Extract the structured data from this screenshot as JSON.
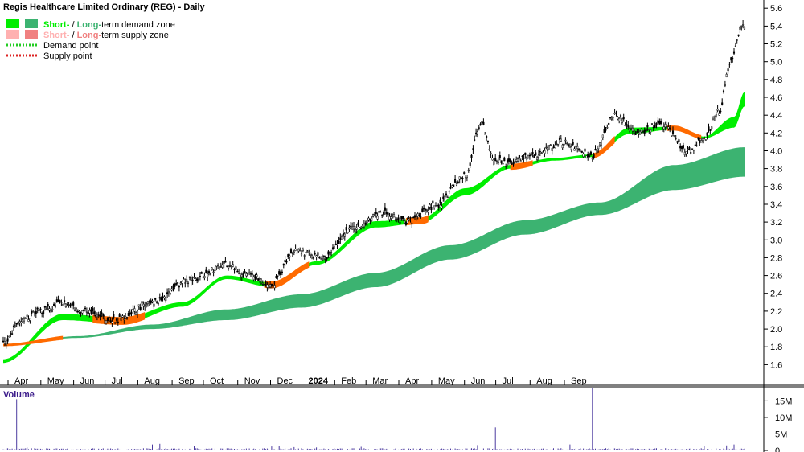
{
  "chart_data": {
    "type": "candlestick",
    "title": "Regis Healthcare Limited Ordinary (REG) - Daily",
    "legend": {
      "placement": "top-left",
      "entries": [
        {
          "prefix": "Short-",
          "sep": " / ",
          "mid": "Long-",
          "suffix": "term demand zone",
          "colors": [
            "#00ee00",
            "#3cb371"
          ],
          "kind": "swatch"
        },
        {
          "prefix": "Short-",
          "sep": " / ",
          "mid": "Long-",
          "suffix": "term supply zone",
          "colors": [
            "#ffb0b0",
            "#f08080"
          ],
          "kind": "swatch"
        },
        {
          "label": "Demand point",
          "color": "#22cc22",
          "kind": "dotted"
        },
        {
          "label": "Supply point",
          "color": "#dd2222",
          "kind": "dotted"
        }
      ]
    },
    "price_axis": {
      "position": "right",
      "ticks": [
        1.6,
        1.8,
        2.0,
        2.2,
        2.4,
        2.6,
        2.8,
        3.0,
        3.2,
        3.4,
        3.6,
        3.8,
        4.0,
        4.2,
        4.4,
        4.6,
        4.8,
        5.0,
        5.2,
        5.4,
        5.6
      ],
      "tick_labels": [
        "1.6",
        "1.8",
        "2.0",
        "2.2",
        "2.4",
        "2.6",
        "2.8",
        "3.0",
        "3.2",
        "3.4",
        "3.6",
        "3.8",
        "4.0",
        "4.2",
        "4.4",
        "4.6",
        "4.8",
        "5.0",
        "5.2",
        "5.4",
        "5.6"
      ],
      "ylim": [
        1.45,
        5.62
      ]
    },
    "time_axis": {
      "labels": [
        "Apr",
        "May",
        "Jun",
        "Jul",
        "Aug",
        "Sep",
        "Oct",
        "Nov",
        "Dec",
        "2024",
        "Feb",
        "Mar",
        "Apr",
        "May",
        "Jun",
        "Jul",
        "Aug",
        "Sep"
      ],
      "bold": [
        "2024"
      ]
    },
    "price_anchors": [
      [
        0,
        1.85
      ],
      [
        12,
        2.1
      ],
      [
        25,
        2.2
      ],
      [
        40,
        2.3
      ],
      [
        55,
        2.2
      ],
      [
        75,
        2.1
      ],
      [
        100,
        2.3
      ],
      [
        125,
        2.55
      ],
      [
        150,
        2.72
      ],
      [
        165,
        2.6
      ],
      [
        180,
        2.5
      ],
      [
        195,
        2.88
      ],
      [
        215,
        2.8
      ],
      [
        235,
        3.15
      ],
      [
        255,
        3.3
      ],
      [
        270,
        3.2
      ],
      [
        290,
        3.38
      ],
      [
        310,
        3.72
      ],
      [
        320,
        4.3
      ],
      [
        330,
        3.9
      ],
      [
        340,
        3.85
      ],
      [
        355,
        3.95
      ],
      [
        375,
        4.1
      ],
      [
        395,
        3.95
      ],
      [
        410,
        4.4
      ],
      [
        425,
        4.2
      ],
      [
        440,
        4.3
      ],
      [
        460,
        4.0
      ],
      [
        470,
        4.15
      ],
      [
        480,
        4.45
      ],
      [
        488,
        5.0
      ],
      [
        495,
        5.4
      ]
    ],
    "short_term_zone": {
      "upper": [
        [
          0,
          1.66
        ],
        [
          40,
          2.17
        ],
        [
          80,
          2.12
        ],
        [
          120,
          2.3
        ],
        [
          150,
          2.6
        ],
        [
          180,
          2.52
        ],
        [
          210,
          2.76
        ],
        [
          250,
          3.21
        ],
        [
          280,
          3.24
        ],
        [
          310,
          3.58
        ],
        [
          340,
          3.84
        ],
        [
          370,
          3.92
        ],
        [
          395,
          3.96
        ],
        [
          420,
          4.26
        ],
        [
          450,
          4.27
        ],
        [
          470,
          4.16
        ],
        [
          490,
          4.38
        ],
        [
          497,
          4.66
        ]
      ],
      "lower": [
        [
          0,
          1.62
        ],
        [
          40,
          2.1
        ],
        [
          80,
          2.06
        ],
        [
          120,
          2.25
        ],
        [
          150,
          2.56
        ],
        [
          180,
          2.47
        ],
        [
          210,
          2.72
        ],
        [
          250,
          3.14
        ],
        [
          280,
          3.19
        ],
        [
          310,
          3.5
        ],
        [
          340,
          3.8
        ],
        [
          370,
          3.89
        ],
        [
          395,
          3.93
        ],
        [
          420,
          4.19
        ],
        [
          450,
          4.24
        ],
        [
          470,
          4.14
        ],
        [
          490,
          4.26
        ],
        [
          497,
          4.5
        ]
      ]
    },
    "long_term_zone": {
      "upper": [
        [
          0,
          1.82
        ],
        [
          50,
          1.92
        ],
        [
          100,
          2.05
        ],
        [
          150,
          2.22
        ],
        [
          200,
          2.39
        ],
        [
          250,
          2.63
        ],
        [
          300,
          2.94
        ],
        [
          350,
          3.22
        ],
        [
          400,
          3.42
        ],
        [
          450,
          3.84
        ],
        [
          497,
          4.04
        ]
      ],
      "lower": [
        [
          0,
          1.82
        ],
        [
          50,
          1.9
        ],
        [
          100,
          2.0
        ],
        [
          150,
          2.1
        ],
        [
          200,
          2.24
        ],
        [
          250,
          2.47
        ],
        [
          300,
          2.78
        ],
        [
          350,
          3.06
        ],
        [
          400,
          3.28
        ],
        [
          450,
          3.56
        ],
        [
          497,
          3.71
        ]
      ]
    },
    "supply_segments": [
      [
        0,
        40
      ],
      [
        60,
        95
      ],
      [
        175,
        205
      ],
      [
        270,
        285
      ],
      [
        340,
        355
      ],
      [
        395,
        410
      ],
      [
        445,
        468
      ]
    ],
    "volume": {
      "title": "Volume",
      "axis_ticks": [
        0,
        5,
        10,
        15
      ],
      "axis_labels": [
        "0",
        "5M",
        "10M",
        "15M"
      ],
      "ylim": [
        0,
        19
      ],
      "base_millions": 0.45,
      "spikes": [
        [
          9,
          15.5
        ],
        [
          16,
          0.9
        ],
        [
          100,
          1.8
        ],
        [
          105,
          2.0
        ],
        [
          128,
          1.4
        ],
        [
          180,
          1.2
        ],
        [
          185,
          1.3
        ],
        [
          195,
          1.0
        ],
        [
          210,
          0.9
        ],
        [
          240,
          1.1
        ],
        [
          318,
          1.6
        ],
        [
          330,
          7.0
        ],
        [
          380,
          1.8
        ],
        [
          395,
          19.0
        ],
        [
          470,
          1.3
        ],
        [
          485,
          1.5
        ],
        [
          490,
          1.8
        ]
      ],
      "bar_color": "#4b3a9f"
    },
    "grid": false,
    "colors": {
      "candle": "#000000",
      "short_demand": "#00ee00",
      "long_demand": "#3cb371",
      "supply": "#ff6a00",
      "axis": "#000000",
      "volume": "#4b3a9f"
    }
  }
}
